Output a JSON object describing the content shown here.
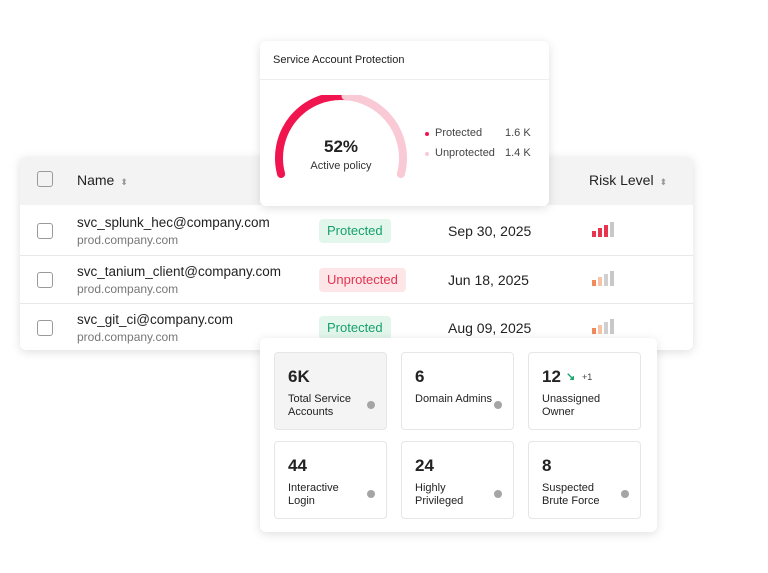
{
  "gauge_card": {
    "title": "Service Account Protection",
    "value": 52,
    "value_label": "52%",
    "caption": "Active policy",
    "legend": [
      {
        "name": "Protected",
        "value": "1.6 K",
        "color": "#f0144f"
      },
      {
        "name": "Unprotected",
        "value": "1.4 K",
        "color": "#f9c9d6"
      }
    ]
  },
  "table": {
    "headers": [
      "Name",
      "Risk Level"
    ],
    "rows": [
      {
        "name": "svc_splunk_hec@company.com",
        "domain": "prod.company.com",
        "status": "Protected",
        "date": "Sep 30, 2025"
      },
      {
        "name": "svc_tanium_client@company.com",
        "domain": "prod.company.com",
        "status": "Unprotected",
        "date": "Jun 18, 2025"
      },
      {
        "name": "svc_git_ci@company.com",
        "domain": "prod.company.com",
        "status": "Protected",
        "date": "Aug 09, 2025"
      }
    ]
  },
  "stats": [
    {
      "value": "6K",
      "label": "Total Service Accounts"
    },
    {
      "value": "6",
      "label": "Domain Admins"
    },
    {
      "value": "12",
      "label": "Unassigned Owner",
      "change": "+1"
    },
    {
      "value": "44",
      "label": "Interactive Login"
    },
    {
      "value": "24",
      "label": "Highly Privileged"
    },
    {
      "value": "8",
      "label": "Suspected Brute Force"
    }
  ]
}
